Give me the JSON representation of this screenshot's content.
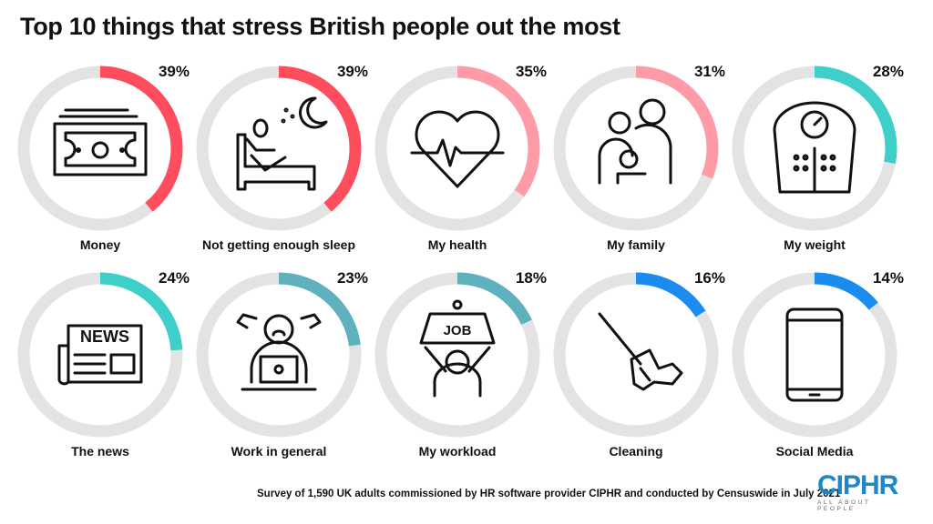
{
  "chart_data": {
    "type": "donut-grid",
    "title": "Top 10 things that stress British people out the most",
    "unit": "%",
    "max": 100,
    "items": [
      {
        "label": "Money",
        "value": 39,
        "color": "#ff4d5e",
        "icon": "banknote-icon"
      },
      {
        "label": "Not getting enough sleep",
        "value": 39,
        "color": "#ff4d5e",
        "icon": "bed-moon-icon"
      },
      {
        "label": "My health",
        "value": 35,
        "color": "#ff9ba6",
        "icon": "heartbeat-icon"
      },
      {
        "label": "My family",
        "value": 31,
        "color": "#ff9ba6",
        "icon": "family-icon"
      },
      {
        "label": "My weight",
        "value": 28,
        "color": "#3fcfca",
        "icon": "scale-icon"
      },
      {
        "label": "The news",
        "value": 24,
        "color": "#3fcfca",
        "icon": "newspaper-icon"
      },
      {
        "label": "Work in general",
        "value": 23,
        "color": "#5fb2bd",
        "icon": "stressed-worker-icon"
      },
      {
        "label": "My workload",
        "value": 18,
        "color": "#5fb2bd",
        "icon": "job-weight-icon"
      },
      {
        "label": "Cleaning",
        "value": 16,
        "color": "#1a8cf0",
        "icon": "mop-icon"
      },
      {
        "label": "Social Media",
        "value": 14,
        "color": "#1a8cf0",
        "icon": "smartphone-icon"
      }
    ],
    "track_color": "#e3e3e3"
  },
  "footer": "Survey of 1,590 UK adults commissioned by HR software provider CIPHR and conducted by Censuswide in July 2021",
  "logo": {
    "name": "CIPHR",
    "tagline": "ALL ABOUT PEOPLE"
  }
}
